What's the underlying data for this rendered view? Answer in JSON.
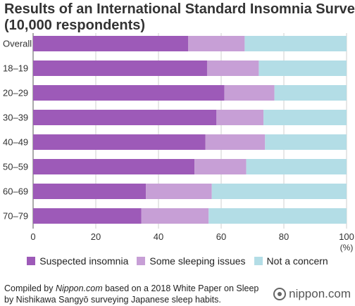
{
  "title_line1": "Results of an International Standard Insomnia Survey",
  "title_line2": "(10,000 respondents)",
  "footnote": {
    "line1_pre": "Compiled by ",
    "line1_italic": "Nippon.com",
    "line1_post": " based on a 2018 White Paper on Sleep",
    "line2": "by Nishikawa Sangyō surveying Japanese sleep habits."
  },
  "logo_text": "nippon.com",
  "chart_data": {
    "type": "bar",
    "orientation": "horizontal",
    "stacked": true,
    "categories": [
      "Overall",
      "18–19",
      "20–29",
      "30–39",
      "40–49",
      "50–59",
      "60–69",
      "70–79"
    ],
    "series": [
      {
        "name": "Suspected insomnia",
        "color": "#9d5ab8",
        "values": [
          49.5,
          55.5,
          61,
          58.5,
          55,
          51.5,
          36,
          34.5
        ]
      },
      {
        "name": "Some sleeping issues",
        "color": "#c79fd6",
        "values": [
          18,
          16.5,
          16,
          15,
          19,
          16.5,
          21,
          21.5
        ]
      },
      {
        "name": "Not a concern",
        "color": "#b3dde6",
        "values": [
          32.5,
          28,
          23,
          26.5,
          26,
          32,
          43,
          44
        ]
      }
    ],
    "xlim": [
      0,
      100
    ],
    "xticks": [
      "0",
      "20",
      "40",
      "60",
      "80",
      "100"
    ],
    "xunit": "(%)",
    "grid": true,
    "legend_position": "bottom"
  }
}
